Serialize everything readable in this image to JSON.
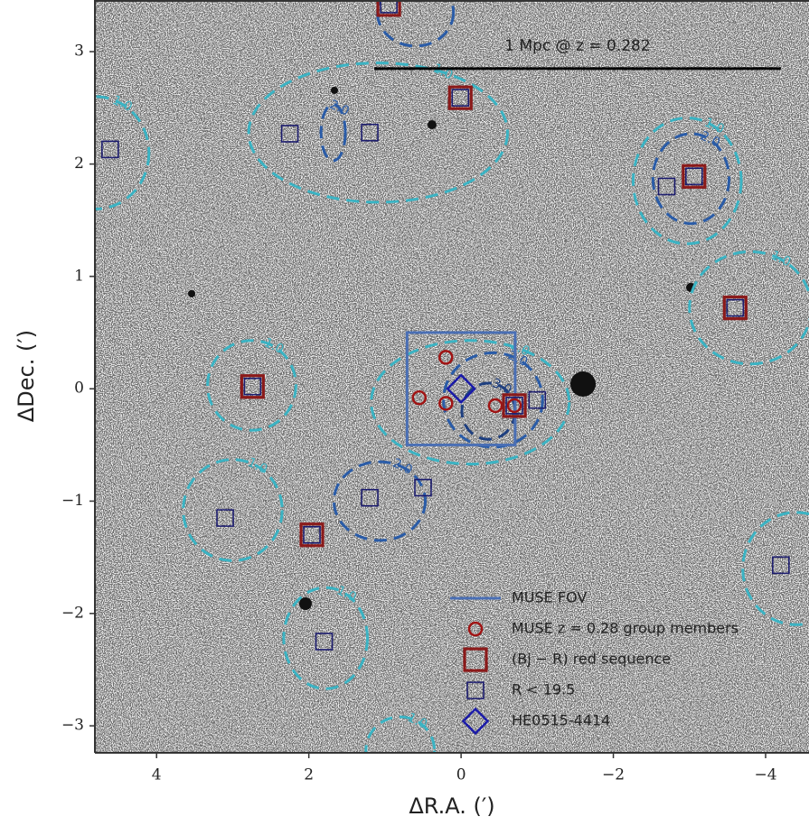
{
  "chart_data": {
    "type": "scatter",
    "xlabel": "ΔR.A. (′)",
    "ylabel": "ΔDec. (′)",
    "xlim": [
      4.81,
      -4.57
    ],
    "ylim": [
      -3.24,
      3.46
    ],
    "xticks": [
      4,
      2,
      0,
      {
        "value": -2,
        "label": "−2"
      },
      {
        "value": -4,
        "label": "−4"
      }
    ],
    "yticks": [
      3,
      2,
      1,
      0,
      {
        "value": -1,
        "label": "−1"
      },
      {
        "value": -2,
        "label": "−2"
      },
      {
        "value": -3,
        "label": "−3"
      }
    ],
    "grid": false,
    "legend": "lower right",
    "series": [
      {
        "name": "MUSE FOV",
        "marker": "line",
        "color": "#4a6fb5",
        "x": [
          0.71,
          -0.71,
          -0.71,
          0.71
        ],
        "y": [
          0.5,
          0.5,
          -0.5,
          -0.5
        ]
      },
      {
        "name": "MUSE z = 0.28 group members",
        "marker": "circle",
        "color": "#a01414",
        "x": [
          0.2,
          0.55,
          0.2,
          -0.45,
          -0.7
        ],
        "y": [
          0.28,
          -0.08,
          -0.13,
          -0.15,
          -0.15
        ]
      },
      {
        "name": "(Bj − R) red sequence",
        "marker": "bigsquare",
        "color": "#8b1a1a",
        "x": [
          0.95,
          0.01,
          -3.06,
          -3.6,
          2.74,
          -0.7,
          1.96
        ],
        "y": [
          3.42,
          2.59,
          1.89,
          0.72,
          0.02,
          -0.15,
          -1.3
        ]
      },
      {
        "name": "R < 19.5",
        "marker": "square",
        "color": "#1c1c6e",
        "x": [
          4.61,
          2.25,
          1.2,
          -2.7,
          -1.0,
          0.5,
          1.2,
          3.1,
          1.8,
          -4.2,
          0.95,
          0.01,
          -3.06,
          -3.6,
          2.74,
          -0.7,
          1.96
        ],
        "y": [
          2.13,
          2.27,
          2.28,
          1.8,
          -0.1,
          -0.88,
          -0.97,
          -1.15,
          -2.25,
          -1.57,
          3.42,
          2.59,
          1.89,
          0.72,
          0.02,
          -0.15,
          -1.3
        ]
      },
      {
        "name": "HE0515-4414",
        "marker": "diamond",
        "color": "#1a1aa8",
        "x": [
          0
        ],
        "y": [
          0
        ]
      }
    ],
    "contours": [
      {
        "level": {
          "value": 1,
          "label": "1.0"
        },
        "color": "#3bb3c3",
        "x": 1.09,
        "y": 2.28,
        "rx": 1.7,
        "ry": 0.62
      },
      {
        "level": {
          "value": 1,
          "label": "1.0"
        },
        "color": "#3bb3c3",
        "x": -2.97,
        "y": 1.85,
        "rx": 0.71,
        "ry": 0.56
      },
      {
        "level": {
          "value": 1,
          "label": "1.0"
        },
        "color": "#3bb3c3",
        "x": -3.8,
        "y": 0.72,
        "rx": 0.8,
        "ry": 0.5
      },
      {
        "level": {
          "value": 1,
          "label": "1.0"
        },
        "color": "#3bb3c3",
        "x": 4.8,
        "y": 2.1,
        "rx": 0.7,
        "ry": 0.5
      },
      {
        "level": {
          "value": 1,
          "label": "1.0"
        },
        "color": "#3bb3c3",
        "x": 2.75,
        "y": 0.03,
        "rx": 0.58,
        "ry": 0.4
      },
      {
        "level": {
          "value": 1,
          "label": "1.0"
        },
        "color": "#3bb3c3",
        "x": -0.12,
        "y": -0.12,
        "rx": 1.3,
        "ry": 0.55
      },
      {
        "level": {
          "value": 1,
          "label": "1.0"
        },
        "color": "#3bb3c3",
        "x": 3.0,
        "y": -1.08,
        "rx": 0.65,
        "ry": 0.45
      },
      {
        "level": {
          "value": 1,
          "label": "1.0"
        },
        "color": "#3bb3c3",
        "x": 1.78,
        "y": -2.22,
        "rx": 0.55,
        "ry": 0.45
      },
      {
        "level": {
          "value": 1,
          "label": "1.0"
        },
        "color": "#3bb3c3",
        "x": -4.4,
        "y": -1.6,
        "rx": 0.7,
        "ry": 0.5
      },
      {
        "level": {
          "value": 1,
          "label": "1.0"
        },
        "color": "#3bb3c3",
        "x": 0.8,
        "y": -3.22,
        "rx": 0.45,
        "ry": 0.3
      },
      {
        "level": {
          "value": 2,
          "label": "2.0"
        },
        "color": "#2a5ca8",
        "x": 1.68,
        "y": 2.28,
        "rx": 0.16,
        "ry": 0.25
      },
      {
        "level": {
          "value": 2,
          "label": "2.0"
        },
        "color": "#2a5ca8",
        "x": -3.02,
        "y": 1.87,
        "rx": 0.5,
        "ry": 0.4
      },
      {
        "level": {
          "value": 2,
          "label": "2.0"
        },
        "color": "#2a5ca8",
        "x": -0.42,
        "y": -0.1,
        "rx": 0.65,
        "ry": 0.42
      },
      {
        "level": {
          "value": 2,
          "label": "2.0"
        },
        "color": "#2a5ca8",
        "x": 1.07,
        "y": -1.0,
        "rx": 0.6,
        "ry": 0.35
      },
      {
        "level": {
          "value": 2,
          "label": "2.0"
        },
        "color": "#2a5ca8",
        "x": 0.6,
        "y": 3.35,
        "rx": 0.5,
        "ry": 0.3
      },
      {
        "level": {
          "value": 3,
          "label": "3.0"
        },
        "color": "#1e3f80",
        "x": -0.36,
        "y": -0.2,
        "rx": 0.35,
        "ry": 0.25
      }
    ],
    "scale_bar": {
      "label": "1 Mpc @ z = 0.282",
      "x": [
        1.14,
        -4.2
      ],
      "y": 2.85
    }
  }
}
